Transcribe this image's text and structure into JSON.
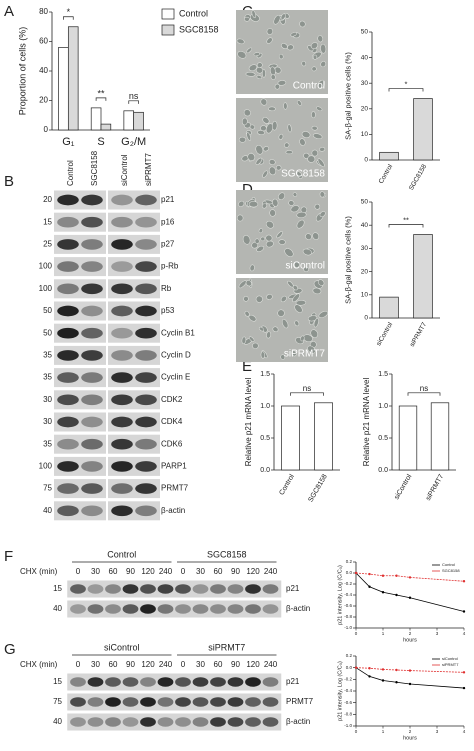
{
  "chart_data": [
    {
      "type": "bar",
      "ylabel": "Proportion of cells (%)",
      "categories": [
        "G₁",
        "S",
        "G₂/M"
      ],
      "series": [
        {
          "name": "Control",
          "color": "#ffffff",
          "values": [
            56,
            15,
            13
          ]
        },
        {
          "name": "SGC8158",
          "color": "#d9d9d9",
          "values": [
            70,
            4,
            12
          ]
        }
      ],
      "ylim": [
        0,
        80
      ],
      "yticks": [
        0,
        20,
        40,
        60,
        80
      ],
      "annotations": [
        "*",
        "**",
        "ns"
      ]
    },
    {
      "type": "bar",
      "ylabel": "SA-β-gal positive cells (%)",
      "categories": [
        "Control",
        "SGC8158"
      ],
      "values": [
        3,
        24
      ],
      "color": "#d9d9d9",
      "ylim": [
        0,
        50
      ],
      "yticks": [
        0,
        10,
        20,
        30,
        40,
        50
      ],
      "annotations": [
        "*"
      ]
    },
    {
      "type": "bar",
      "ylabel": "SA-β-gal positive cells (%)",
      "categories": [
        "siControl",
        "siPRMT7"
      ],
      "values": [
        9,
        36
      ],
      "color": "#d9d9d9",
      "ylim": [
        0,
        50
      ],
      "yticks": [
        0,
        10,
        20,
        30,
        40,
        50
      ],
      "annotations": [
        "**"
      ]
    },
    {
      "type": "bar",
      "ylabel": "Relative p21 mRNA level",
      "categories": [
        "Control",
        "SGC8158"
      ],
      "values": [
        1.0,
        1.05
      ],
      "color": "#ffffff",
      "ylim": [
        0,
        1.5
      ],
      "yticks": [
        {
          "value": 0,
          "label": "0.0"
        },
        0.5,
        {
          "value": 1,
          "label": "1.0"
        },
        1.5
      ],
      "annotations": [
        "ns"
      ]
    },
    {
      "type": "bar",
      "ylabel": "Relative p21 mRNA level",
      "categories": [
        "siControl",
        "siPRMT7"
      ],
      "values": [
        1.0,
        1.05
      ],
      "color": "#ffffff",
      "ylim": [
        0,
        1.5
      ],
      "yticks": [
        {
          "value": 0,
          "label": "0.0"
        },
        0.5,
        {
          "value": 1,
          "label": "1.0"
        },
        1.5
      ],
      "annotations": [
        "ns"
      ]
    },
    {
      "type": "line",
      "xlabel": "hours",
      "ylabel": "p21 intensity, Log (C/C₀)",
      "x": [
        0,
        0.5,
        1,
        1.5,
        2,
        4
      ],
      "series": [
        {
          "name": "Control",
          "color": "#000000",
          "values": [
            0,
            -0.25,
            -0.35,
            -0.4,
            -0.45,
            -0.7
          ]
        },
        {
          "name": "SGC8158",
          "color": "#e03030",
          "values": [
            0,
            -0.02,
            -0.05,
            -0.05,
            -0.08,
            -0.15
          ]
        }
      ],
      "xlim": [
        0,
        4
      ],
      "xticks": [
        0,
        1,
        2,
        3,
        4
      ],
      "ylim": [
        -1,
        0.2
      ],
      "yticks": [
        0.2,
        {
          "value": 0,
          "label": "0.0"
        },
        -0.2,
        -0.4,
        -0.6,
        -0.8,
        {
          "value": -1,
          "label": "-1.0"
        }
      ]
    },
    {
      "type": "line",
      "xlabel": "hours",
      "ylabel": "p21 intensity, Log (C/C₀)",
      "x": [
        0,
        0.5,
        1,
        1.5,
        2,
        4
      ],
      "series": [
        {
          "name": "siControl",
          "color": "#000000",
          "values": [
            0,
            -0.15,
            -0.22,
            -0.25,
            -0.28,
            -0.35
          ]
        },
        {
          "name": "siPRMT7",
          "color": "#e03030",
          "values": [
            0,
            -0.01,
            -0.03,
            -0.04,
            -0.05,
            -0.08
          ]
        }
      ],
      "xlim": [
        0,
        4
      ],
      "xticks": [
        0,
        1,
        2,
        3,
        4
      ],
      "ylim": [
        -1,
        0.2
      ],
      "yticks": [
        0.2,
        {
          "value": 0,
          "label": "0.0"
        },
        -0.2,
        -0.4,
        -0.6,
        -0.8,
        {
          "value": -1,
          "label": "-1.0"
        }
      ]
    }
  ],
  "panel_letters": [
    "A",
    "B",
    "C",
    "D",
    "E",
    "F",
    "G"
  ],
  "blot_b": {
    "columns": [
      "Control",
      "SGC8158",
      "siControl",
      "siPRMT7"
    ],
    "markers": [
      "20",
      "15",
      "25",
      "100",
      "100",
      "50",
      "50",
      "35",
      "35",
      "30",
      "30",
      "35",
      "100",
      "75",
      "40"
    ],
    "proteins": [
      "p21",
      "p16",
      "p27",
      "p-Rb",
      "Rb",
      "p53",
      "Cyclin B1",
      "Cyclin D",
      "Cyclin E",
      "CDK2",
      "CDK4",
      "CDK6",
      "PARP1",
      "PRMT7",
      "β-actin"
    ]
  },
  "images_c": [
    "Control",
    "SGC8158"
  ],
  "images_d": [
    "siControl",
    "siPRMT7"
  ],
  "blot_f": {
    "groups": [
      "Control",
      "SGC8158"
    ],
    "treatment": "CHX (min)",
    "times": [
      "0",
      "30",
      "60",
      "90",
      "120",
      "240",
      "0",
      "30",
      "60",
      "90",
      "120",
      "240"
    ],
    "markers": [
      "15",
      "40"
    ],
    "proteins": [
      "p21",
      "β-actin"
    ]
  },
  "blot_g": {
    "groups": [
      "siControl",
      "siPRMT7"
    ],
    "treatment": "CHX (min)",
    "times": [
      "0",
      "30",
      "60",
      "90",
      "120",
      "240",
      "0",
      "30",
      "60",
      "90",
      "120",
      "240"
    ],
    "markers": [
      "15",
      "75",
      "40"
    ],
    "proteins": [
      "p21",
      "PRMT7",
      "β-actin"
    ]
  }
}
